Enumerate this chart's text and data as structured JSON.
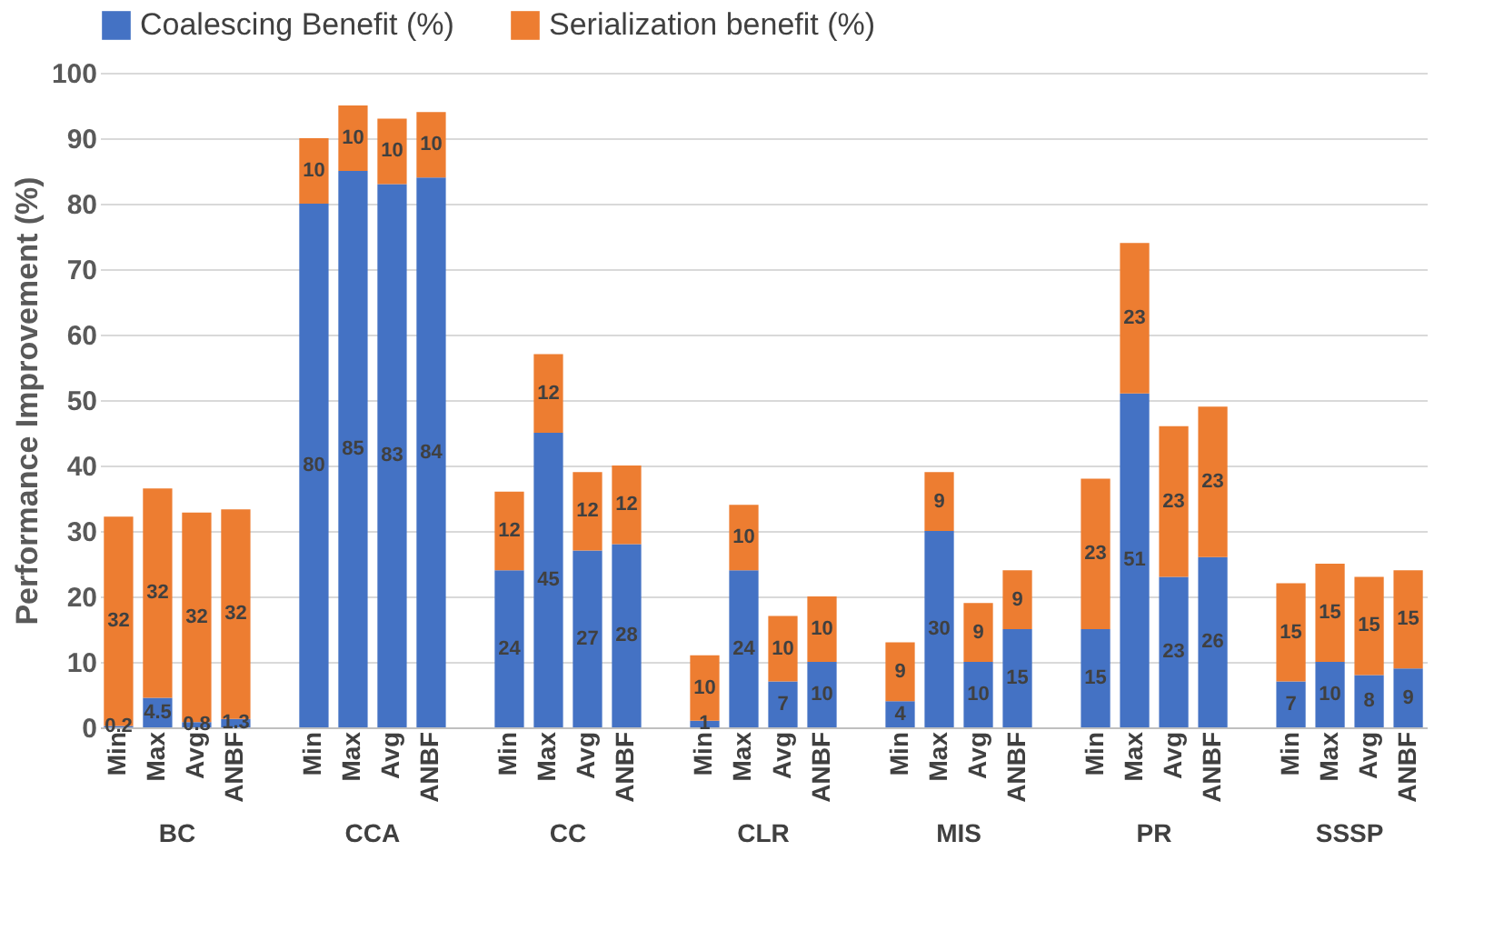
{
  "chart_data": {
    "type": "bar",
    "stacked": true,
    "ylabel": "Performance Improvement (%)",
    "categories": [
      "Min",
      "Max",
      "Avg",
      "ANBF",
      "Min",
      "Max",
      "Avg",
      "ANBF",
      "Min",
      "Max",
      "Avg",
      "ANBF",
      "Min",
      "Max",
      "Avg",
      "ANBF",
      "Min",
      "Max",
      "Avg",
      "ANBF",
      "Min",
      "Max",
      "Avg",
      "ANBF",
      "Min",
      "Max",
      "Avg",
      "ANBF"
    ],
    "annotations": [
      "BC",
      "CCA",
      "CC",
      "CLR",
      "MIS",
      "PR",
      "SSSP"
    ],
    "series": [
      {
        "name": "Coalescing Benefit (%)",
        "color": "#4472c4",
        "values": [
          0.2,
          4.5,
          0.8,
          1.3,
          80,
          85,
          83,
          84,
          24,
          45,
          27,
          28,
          1,
          24,
          7,
          10,
          4,
          30,
          10,
          15,
          15,
          51,
          23,
          26,
          7,
          10,
          8,
          9
        ]
      },
      {
        "name": "Serialization benefit (%)",
        "color": "#ed7d31",
        "values": [
          32,
          32,
          32,
          32,
          10,
          10,
          10,
          10,
          12,
          12,
          12,
          12,
          10,
          10,
          10,
          10,
          9,
          9,
          9,
          9,
          23,
          23,
          23,
          23,
          15,
          15,
          15,
          15
        ]
      }
    ],
    "ylim": [
      0,
      100
    ],
    "yticks": [
      0,
      10,
      20,
      30,
      40,
      50,
      60,
      70,
      80,
      90,
      100
    ],
    "grid": "y",
    "legend": "top",
    "data_labels": true
  }
}
